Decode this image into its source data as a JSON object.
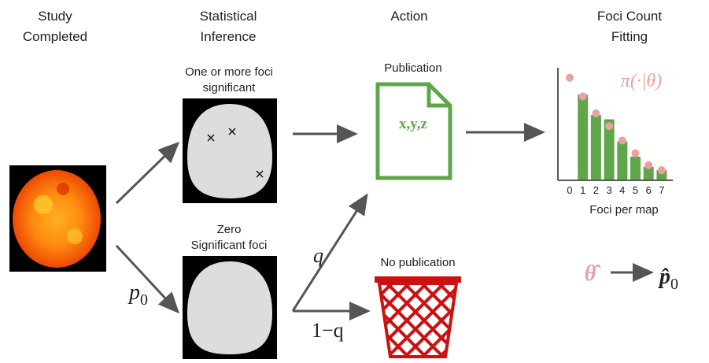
{
  "columns": [
    [
      "Study",
      "Completed"
    ],
    [
      "Statistical",
      "Inference"
    ],
    [
      "Action"
    ],
    [
      "Foci Count",
      "Fitting"
    ]
  ],
  "panels": {
    "significant": [
      "One or more foci",
      "significant"
    ],
    "zero": [
      "Zero",
      "Significant foci"
    ]
  },
  "p_label": {
    "base": "p",
    "sub": "0"
  },
  "q_label": "q",
  "one_minus_q_label": "1−q",
  "publication": {
    "title": "Publication",
    "content": "x,y,z"
  },
  "no_publication": "No publication",
  "fit_chart": {
    "type": "bar",
    "annotation": "π(·|θ)",
    "xlabel": "Foci per map",
    "categories": [
      "0",
      "1",
      "2",
      "3",
      "4",
      "5",
      "6",
      "7"
    ],
    "ylim": [
      0,
      130
    ],
    "series": [
      {
        "color": "#5fa64a",
        "values": [
          0,
          100,
          76,
          71,
          45,
          27,
          15,
          11
        ]
      },
      {
        "color": "#e8a0a0",
        "values": [
          120,
          98,
          78,
          63,
          46,
          31,
          17,
          11
        ]
      }
    ]
  },
  "estimate": {
    "theta": "θ̂",
    "p": {
      "base": "p̂",
      "sub": "0"
    }
  }
}
